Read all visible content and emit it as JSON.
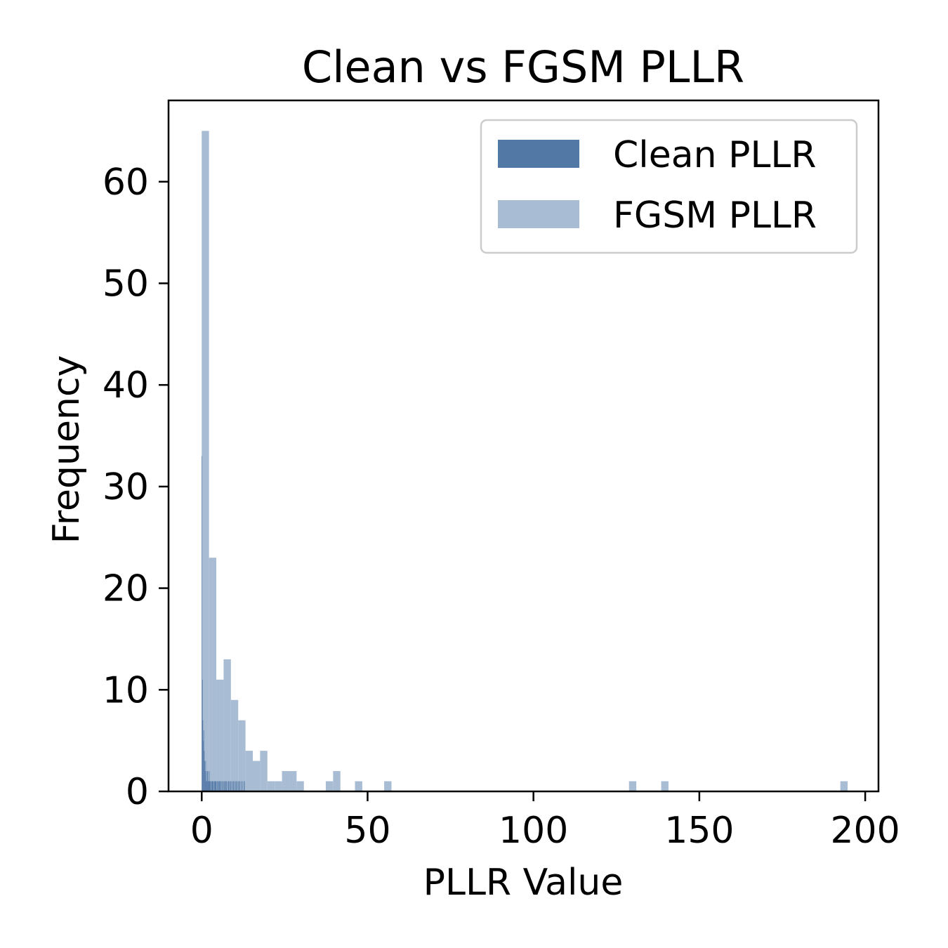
{
  "chart_data": {
    "type": "histogram",
    "title": "Clean vs FGSM PLLR",
    "xlabel": "PLLR Value",
    "ylabel": "Frequency",
    "xlim": [
      -10,
      204
    ],
    "ylim": [
      0,
      68
    ],
    "xticks": [
      0,
      50,
      100,
      150,
      200
    ],
    "yticks": [
      0,
      10,
      20,
      30,
      40,
      50,
      60
    ],
    "legend_position": "top-right",
    "series": [
      {
        "name": "Clean PLLR",
        "color": "#5278a6",
        "bin_edges": [
          0.0,
          0.14,
          0.28,
          0.42,
          0.56,
          0.7,
          0.84,
          0.98,
          1.12,
          1.26,
          1.4,
          1.54,
          1.68,
          1.82,
          1.96,
          2.1,
          2.24,
          2.38,
          2.52,
          2.66,
          2.8,
          2.94,
          3.08,
          3.22,
          3.36,
          3.5,
          3.64,
          3.78,
          3.92,
          4.06,
          4.2,
          4.34,
          4.48,
          4.62,
          4.76,
          4.9,
          5.04,
          5.18,
          5.32,
          5.46,
          5.6,
          5.74,
          5.88,
          6.02,
          6.16,
          6.3,
          6.44,
          6.58,
          6.72,
          6.86,
          7.0,
          7.14,
          7.28,
          7.42,
          7.56,
          7.7,
          7.84,
          7.98,
          8.12,
          8.26,
          8.4,
          8.54,
          8.68,
          8.82,
          8.96,
          9.1,
          9.24,
          9.38,
          9.52,
          9.66,
          9.8,
          9.94,
          10.08,
          10.22,
          10.36,
          10.5,
          10.64,
          10.78,
          10.92,
          11.06,
          11.2,
          11.34,
          11.48,
          11.62,
          11.76,
          11.9,
          12.04,
          12.18,
          12.32,
          12.46,
          12.6,
          12.74,
          12.88,
          13.02
        ],
        "counts": [
          33,
          11,
          7,
          5,
          6,
          4,
          3,
          2,
          3,
          1,
          2,
          1,
          2,
          2,
          1,
          1,
          2,
          1,
          1,
          1,
          0,
          1,
          1,
          1,
          1,
          1,
          0,
          1,
          1,
          1,
          1,
          1,
          0,
          1,
          1,
          0,
          1,
          1,
          1,
          0,
          1,
          1,
          0,
          1,
          0,
          1,
          1,
          0,
          1,
          0,
          1,
          1,
          0,
          1,
          0,
          1,
          0,
          1,
          1,
          0,
          1,
          0,
          1,
          0,
          1,
          0,
          1,
          0,
          1,
          0,
          1,
          0,
          1,
          0,
          1,
          0,
          1,
          0,
          1,
          0,
          1,
          0,
          1,
          0,
          0,
          1,
          0,
          1,
          0,
          0,
          1,
          0,
          1
        ]
      },
      {
        "name": "FGSM PLLR",
        "color": "#a8bcd3",
        "bin_edges": [
          0.0,
          2.2,
          4.4,
          6.6,
          8.8,
          11.0,
          13.2,
          15.4,
          17.6,
          19.8,
          22.0,
          24.2,
          26.4,
          28.6,
          30.8,
          33.0,
          35.2,
          37.4,
          39.6,
          41.8,
          44.0,
          46.2,
          48.4,
          50.6,
          52.8,
          55.0,
          57.2,
          59.4,
          128.8,
          131.0,
          138.5,
          140.7,
          192.5,
          194.7
        ],
        "counts": [
          65,
          23,
          11,
          13,
          9,
          7,
          4,
          3,
          4,
          1,
          1,
          2,
          2,
          1,
          0,
          0,
          0,
          1,
          2,
          0,
          0,
          1,
          0,
          0,
          0,
          1,
          0,
          0,
          1,
          0,
          1,
          0,
          1
        ]
      }
    ]
  }
}
